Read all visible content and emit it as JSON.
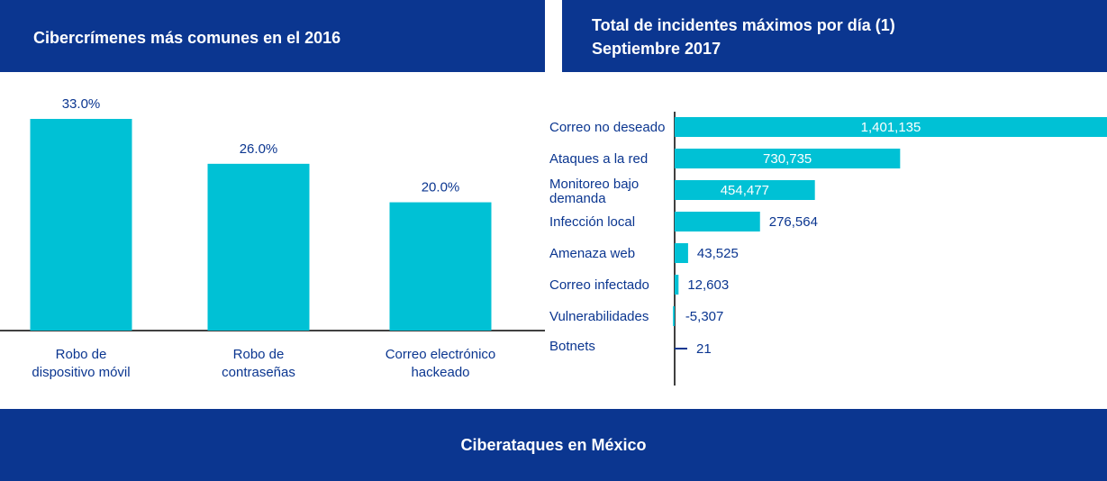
{
  "left_banner": {
    "title": "Cibercrímenes más comunes en el 2016"
  },
  "right_banner": {
    "title_line1": "Total de incidentes máximos por día (1)",
    "title_line2": "Septiembre 2017"
  },
  "footer": {
    "title": "Ciberataques en México"
  },
  "colors": {
    "banner": "#0b3690",
    "bar": "#00c1d5",
    "text": "#0b3690",
    "axis": "#000000"
  },
  "chart_data": [
    {
      "type": "bar",
      "title": "Cibercrímenes más comunes en el 2016",
      "categories": [
        [
          "Robo de",
          "dispositivo móvil"
        ],
        [
          "Robo de",
          "contraseñas"
        ],
        [
          "Correo electrónico",
          "hackeado"
        ]
      ],
      "values": [
        33.0,
        26.0,
        20.0
      ],
      "value_labels": [
        "33.0%",
        "26.0%",
        "20.0%"
      ],
      "ylim": [
        0,
        40
      ],
      "grid": false,
      "legend": "none"
    },
    {
      "type": "bar",
      "orientation": "horizontal",
      "title": "Total de incidentes máximos por día (1) Septiembre 2017",
      "categories": [
        [
          "Correo no deseado"
        ],
        [
          "Ataques a la red"
        ],
        [
          "Monitoreo bajo",
          "demanda"
        ],
        [
          "Infección local"
        ],
        [
          "Amenaza web"
        ],
        [
          "Correo infectado"
        ],
        [
          "Vulnerabilidades"
        ],
        [
          "Botnets"
        ]
      ],
      "values": [
        1401135,
        730735,
        454477,
        276564,
        43525,
        12603,
        -5307,
        21
      ],
      "value_labels": [
        "1,401,135",
        "730,735",
        "454,477",
        "276,564",
        "43,525",
        "12,603",
        "-5,307",
        "21"
      ],
      "xlim": [
        0,
        1401135
      ],
      "grid": false,
      "legend": "none"
    }
  ]
}
